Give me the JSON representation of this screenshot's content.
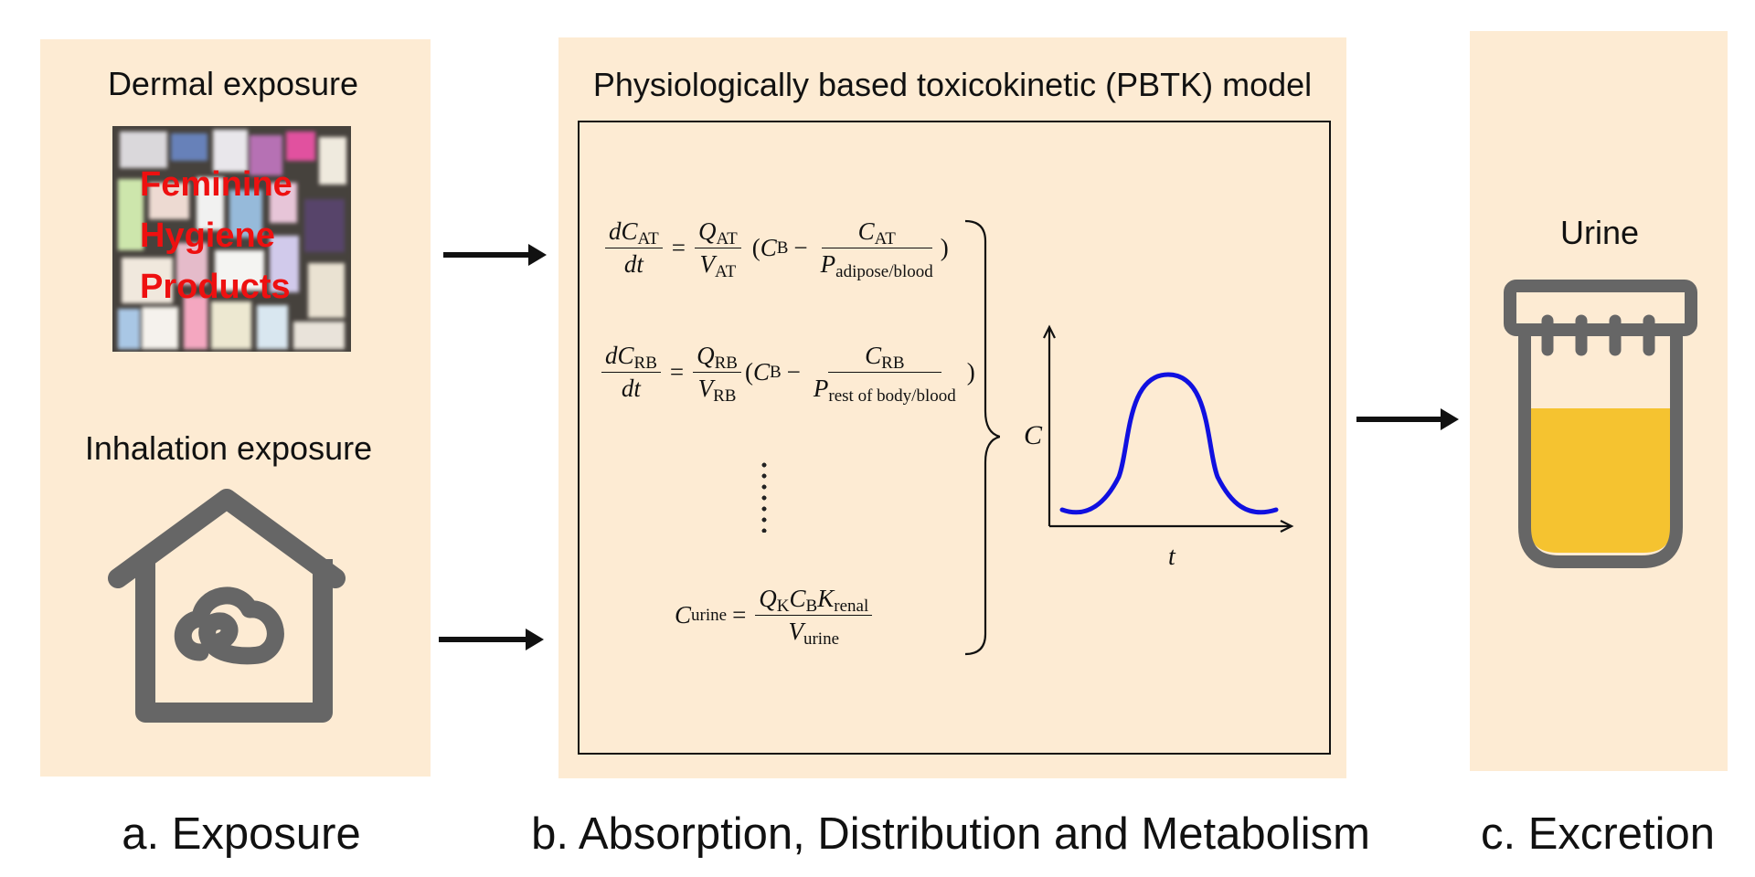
{
  "panel_a": {
    "dermal_title": "Dermal exposure",
    "product_text": [
      "Feminine",
      "Hygiene",
      "Products"
    ],
    "inhalation_title": "Inhalation exposure",
    "house_icon": "house-cloud-icon",
    "caption": "a. Exposure"
  },
  "panel_b": {
    "title": "Physiologically based toxicokinetic (PBTK) model",
    "eq1": {
      "lhs_num": "dC",
      "lhs_num_sub": "AT",
      "lhs_den": "dt",
      "q": "Q",
      "q_sub": "AT",
      "v": "V",
      "v_sub": "AT",
      "cb": "C",
      "cb_sub": "B",
      "c": "C",
      "c_sub": "AT",
      "p": "P",
      "p_sub": "adipose/blood"
    },
    "eq2": {
      "lhs_num": "dC",
      "lhs_num_sub": "RB",
      "lhs_den": "dt",
      "q": "Q",
      "q_sub": "RB",
      "v": "V",
      "v_sub": "RB",
      "cb": "C",
      "cb_sub": "B",
      "c": "C",
      "c_sub": "RB",
      "p": "P",
      "p_sub": "rest of body/blood"
    },
    "eq3": {
      "lhs": "C",
      "lhs_sub": "urine",
      "q": "Q",
      "q_sub": "K",
      "cb": "C",
      "cb_sub": "B",
      "k": "K",
      "k_sub": "renal",
      "v": "V",
      "v_sub": "urine"
    },
    "plot_ylabel": "C",
    "plot_xlabel": "t",
    "curve_color": "#1010e0",
    "caption": "b. Absorption, Distribution and Metabolism"
  },
  "panel_c": {
    "title": "Urine",
    "cup_icon": "urine-cup-icon",
    "urine_color": "#f5c330",
    "caption": "c. Excretion"
  }
}
